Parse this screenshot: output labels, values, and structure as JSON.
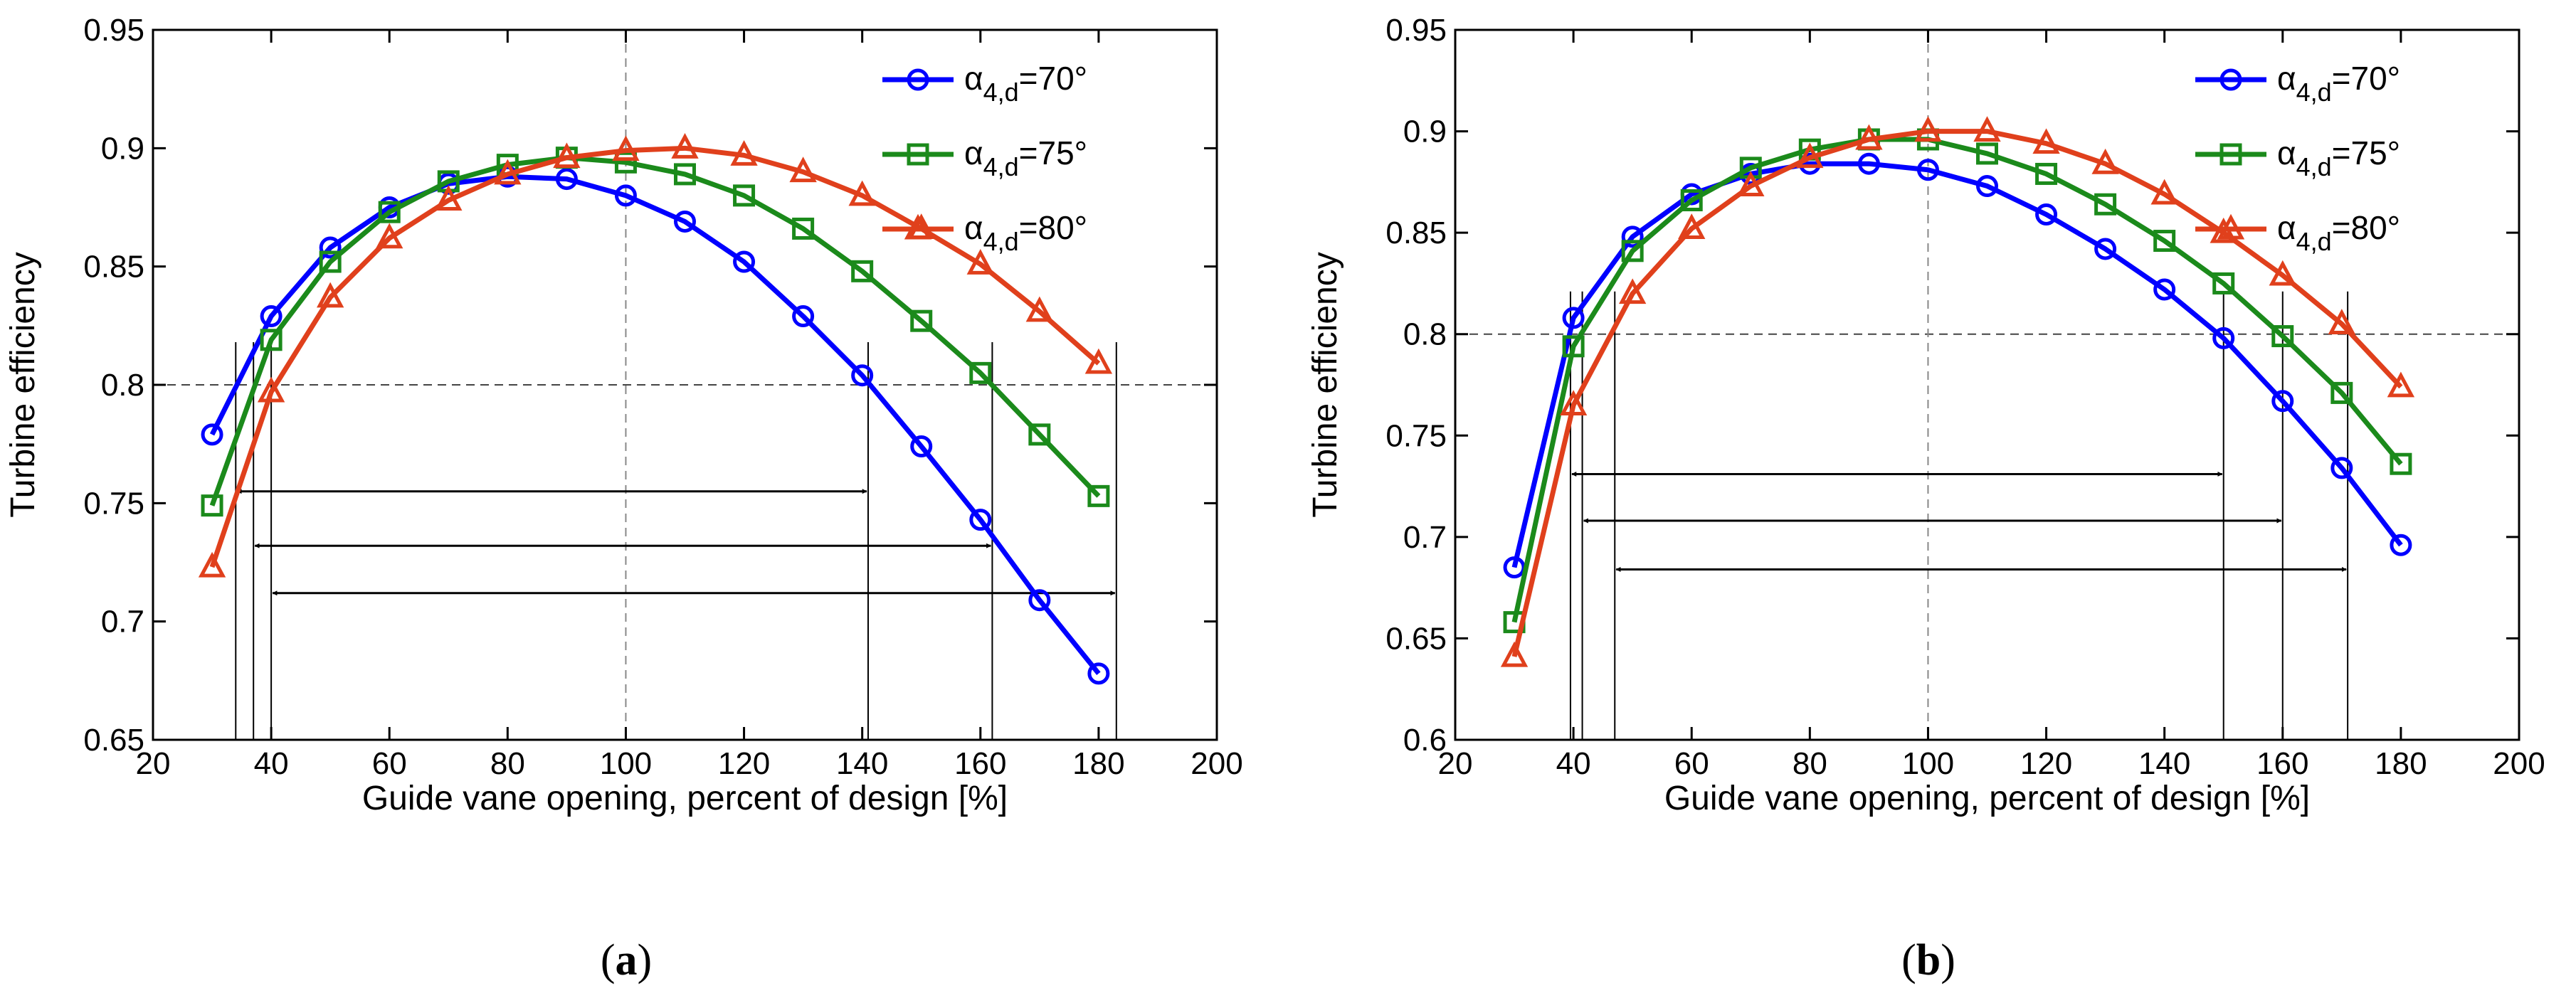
{
  "chart_data": [
    {
      "type": "line",
      "panel_label": "a",
      "caption": {
        "open": "(",
        "letter": "a",
        "close": ")"
      },
      "xlabel": "Guide vane opening, percent of design [%]",
      "ylabel": "Turbine efficiency",
      "xlim": [
        20,
        200
      ],
      "ylim": [
        0.65,
        0.95
      ],
      "xticks": [
        20,
        40,
        60,
        80,
        100,
        120,
        140,
        160,
        180,
        200
      ],
      "yticks": [
        0.65,
        0.7,
        0.75,
        0.8,
        0.85,
        0.9,
        0.95
      ],
      "ytick_labels": [
        "0.65",
        "0.7",
        "0.75",
        "0.8",
        "0.85",
        "0.9",
        "0.95"
      ],
      "grid": false,
      "legend_position": "top-right",
      "reference_lines": {
        "horizontal_y": 0.8,
        "vertical_x": 100
      },
      "x": [
        30,
        40,
        50,
        60,
        70,
        80,
        90,
        100,
        110,
        120,
        130,
        140,
        150,
        160,
        170,
        180
      ],
      "series": [
        {
          "name": "α4,d=70°",
          "legend": {
            "symbol": "α",
            "sub": "4,d",
            "value": "=70°"
          },
          "color": "#0000FF",
          "marker": "circle",
          "values": [
            0.779,
            0.829,
            0.858,
            0.875,
            0.885,
            0.888,
            0.887,
            0.88,
            0.869,
            0.852,
            0.829,
            0.804,
            0.774,
            0.743,
            0.709,
            0.678
          ]
        },
        {
          "name": "α4,d=75°",
          "legend": {
            "symbol": "α",
            "sub": "4,d",
            "value": "=75°"
          },
          "color": "#1B8A1B",
          "marker": "square",
          "values": [
            0.749,
            0.819,
            0.852,
            0.873,
            0.886,
            0.893,
            0.896,
            0.894,
            0.889,
            0.88,
            0.866,
            0.848,
            0.827,
            0.805,
            0.779,
            0.753
          ]
        },
        {
          "name": "α4,d=80°",
          "legend": {
            "symbol": "α",
            "sub": "4,d",
            "value": "=80°"
          },
          "color": "#E0401C",
          "marker": "triangle",
          "values": [
            0.723,
            0.797,
            0.837,
            0.862,
            0.878,
            0.889,
            0.896,
            0.899,
            0.9,
            0.897,
            0.89,
            0.88,
            0.866,
            0.851,
            0.831,
            0.809
          ]
        }
      ],
      "range_markers": [
        {
          "x_start": 34,
          "x_end": 141,
          "y": 0.755
        },
        {
          "x_start": 37,
          "x_end": 162,
          "y": 0.732
        },
        {
          "x_start": 40,
          "x_end": 183,
          "y": 0.712
        }
      ]
    },
    {
      "type": "line",
      "panel_label": "b",
      "caption": {
        "open": "(",
        "letter": "b",
        "close": ")"
      },
      "xlabel": "Guide vane opening, percent of design [%]",
      "ylabel": "Turbine efficiency",
      "xlim": [
        20,
        200
      ],
      "ylim": [
        0.6,
        0.95
      ],
      "xticks": [
        20,
        40,
        60,
        80,
        100,
        120,
        140,
        160,
        180,
        200
      ],
      "yticks": [
        0.6,
        0.65,
        0.7,
        0.75,
        0.8,
        0.85,
        0.9,
        0.95
      ],
      "ytick_labels": [
        "0.6",
        "0.65",
        "0.7",
        "0.75",
        "0.8",
        "0.85",
        "0.9",
        "0.95"
      ],
      "grid": false,
      "legend_position": "top-right",
      "reference_lines": {
        "horizontal_y": 0.8,
        "vertical_x": 100
      },
      "x": [
        30,
        40,
        50,
        60,
        70,
        80,
        90,
        100,
        110,
        120,
        130,
        140,
        150,
        160,
        170,
        180
      ],
      "series": [
        {
          "name": "α4,d=70°",
          "legend": {
            "symbol": "α",
            "sub": "4,d",
            "value": "=70°"
          },
          "color": "#0000FF",
          "marker": "circle",
          "values": [
            0.685,
            0.808,
            0.848,
            0.869,
            0.879,
            0.884,
            0.884,
            0.881,
            0.873,
            0.859,
            0.842,
            0.822,
            0.798,
            0.767,
            0.734,
            0.696
          ]
        },
        {
          "name": "α4,d=75°",
          "legend": {
            "symbol": "α",
            "sub": "4,d",
            "value": "=75°"
          },
          "color": "#1B8A1B",
          "marker": "square",
          "values": [
            0.658,
            0.794,
            0.841,
            0.866,
            0.882,
            0.891,
            0.896,
            0.896,
            0.889,
            0.879,
            0.864,
            0.846,
            0.825,
            0.799,
            0.771,
            0.736
          ]
        },
        {
          "name": "α4,d=80°",
          "legend": {
            "symbol": "α",
            "sub": "4,d",
            "value": "=80°"
          },
          "color": "#E0401C",
          "marker": "triangle",
          "values": [
            0.641,
            0.765,
            0.82,
            0.852,
            0.873,
            0.887,
            0.896,
            0.9,
            0.9,
            0.894,
            0.884,
            0.869,
            0.85,
            0.829,
            0.805,
            0.774
          ]
        }
      ],
      "range_markers": [
        {
          "x_start": 39.5,
          "x_end": 150,
          "y": 0.731
        },
        {
          "x_start": 41.5,
          "x_end": 160,
          "y": 0.708
        },
        {
          "x_start": 47,
          "x_end": 171,
          "y": 0.684
        }
      ]
    }
  ]
}
